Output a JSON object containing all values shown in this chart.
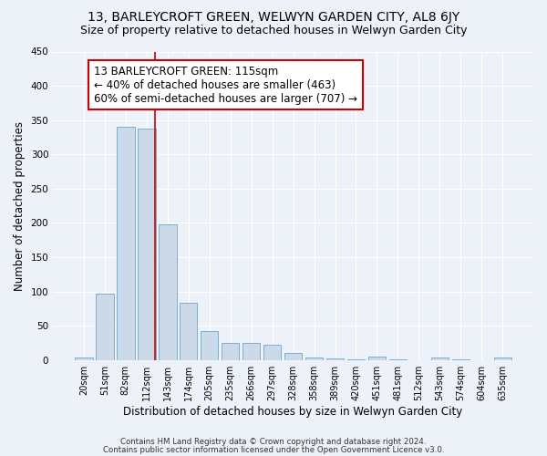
{
  "title1": "13, BARLEYCROFT GREEN, WELWYN GARDEN CITY, AL8 6JY",
  "title2": "Size of property relative to detached houses in Welwyn Garden City",
  "xlabel": "Distribution of detached houses by size in Welwyn Garden City",
  "ylabel": "Number of detached properties",
  "bin_labels": [
    "20sqm",
    "51sqm",
    "82sqm",
    "112sqm",
    "143sqm",
    "174sqm",
    "205sqm",
    "235sqm",
    "266sqm",
    "297sqm",
    "328sqm",
    "358sqm",
    "389sqm",
    "420sqm",
    "451sqm",
    "481sqm",
    "512sqm",
    "543sqm",
    "574sqm",
    "604sqm",
    "635sqm"
  ],
  "bar_values": [
    4,
    97,
    340,
    337,
    198,
    84,
    42,
    25,
    25,
    22,
    10,
    4,
    2,
    1,
    5,
    1,
    0,
    3,
    1,
    0,
    3
  ],
  "bar_color": "#ccd9e8",
  "bar_edgecolor": "#7bafd4",
  "vline_x": 3.42,
  "vline_color": "#cc0000",
  "annotation_text": "13 BARLEYCROFT GREEN: 115sqm\n← 40% of detached houses are smaller (463)\n60% of semi-detached houses are larger (707) →",
  "annotation_fontsize": 8.5,
  "footer1": "Contains HM Land Registry data © Crown copyright and database right 2024.",
  "footer2": "Contains public sector information licensed under the Open Government Licence v3.0.",
  "ylim": [
    0,
    450
  ],
  "yticks": [
    0,
    50,
    100,
    150,
    200,
    250,
    300,
    350,
    400,
    450
  ],
  "background_color": "#edf2f9",
  "grid_color": "#ffffff",
  "title1_fontsize": 10,
  "title2_fontsize": 9,
  "xlabel_fontsize": 8.5,
  "ylabel_fontsize": 8.5
}
